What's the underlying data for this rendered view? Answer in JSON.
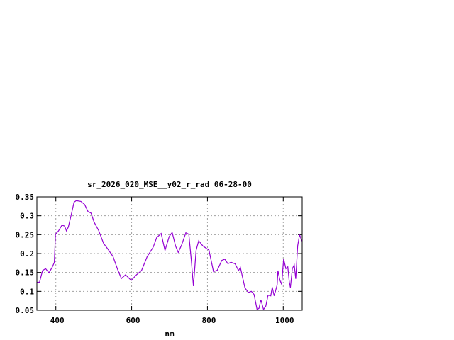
{
  "chart_data": {
    "type": "line",
    "title": "sr_2026_020_MSE__y02_r_rad 06-28-00",
    "xlabel": "nm",
    "ylabel": "",
    "xlim": [
      350,
      1050
    ],
    "ylim": [
      0.05,
      0.35
    ],
    "grid": true,
    "x_ticks": [
      400,
      600,
      800,
      1000
    ],
    "y_ticks": [
      0.05,
      0.1,
      0.15,
      0.2,
      0.25,
      0.3,
      0.35
    ],
    "y_tick_labels": [
      "0.05",
      "0.1",
      "0.15",
      "0.2",
      "0.25",
      "0.3",
      "0.35"
    ],
    "x_tick_labels": [
      "400",
      "600",
      "800",
      "1000"
    ],
    "series": [
      {
        "color": "#9400d3",
        "points": [
          [
            350,
            0.124
          ],
          [
            357,
            0.124
          ],
          [
            365,
            0.155
          ],
          [
            373,
            0.16
          ],
          [
            382,
            0.149
          ],
          [
            391,
            0.165
          ],
          [
            396,
            0.177
          ],
          [
            399,
            0.251
          ],
          [
            407,
            0.26
          ],
          [
            416,
            0.275
          ],
          [
            423,
            0.273
          ],
          [
            428,
            0.26
          ],
          [
            433,
            0.27
          ],
          [
            441,
            0.304
          ],
          [
            448,
            0.336
          ],
          [
            454,
            0.34
          ],
          [
            466,
            0.338
          ],
          [
            476,
            0.33
          ],
          [
            485,
            0.311
          ],
          [
            493,
            0.307
          ],
          [
            501,
            0.283
          ],
          [
            513,
            0.261
          ],
          [
            526,
            0.227
          ],
          [
            538,
            0.211
          ],
          [
            551,
            0.192
          ],
          [
            563,
            0.158
          ],
          [
            573,
            0.134
          ],
          [
            584,
            0.144
          ],
          [
            599,
            0.129
          ],
          [
            613,
            0.144
          ],
          [
            626,
            0.155
          ],
          [
            641,
            0.192
          ],
          [
            657,
            0.217
          ],
          [
            666,
            0.242
          ],
          [
            678,
            0.253
          ],
          [
            688,
            0.208
          ],
          [
            699,
            0.245
          ],
          [
            707,
            0.256
          ],
          [
            716,
            0.22
          ],
          [
            723,
            0.203
          ],
          [
            732,
            0.223
          ],
          [
            743,
            0.255
          ],
          [
            751,
            0.251
          ],
          [
            757,
            0.186
          ],
          [
            763,
            0.114
          ],
          [
            770,
            0.208
          ],
          [
            777,
            0.234
          ],
          [
            788,
            0.22
          ],
          [
            804,
            0.209
          ],
          [
            816,
            0.152
          ],
          [
            826,
            0.156
          ],
          [
            838,
            0.182
          ],
          [
            846,
            0.185
          ],
          [
            854,
            0.173
          ],
          [
            862,
            0.177
          ],
          [
            873,
            0.173
          ],
          [
            882,
            0.155
          ],
          [
            887,
            0.163
          ],
          [
            891,
            0.145
          ],
          [
            899,
            0.109
          ],
          [
            908,
            0.097
          ],
          [
            916,
            0.1
          ],
          [
            923,
            0.092
          ],
          [
            931,
            0.052
          ],
          [
            936,
            0.055
          ],
          [
            941,
            0.078
          ],
          [
            948,
            0.052
          ],
          [
            954,
            0.061
          ],
          [
            960,
            0.09
          ],
          [
            967,
            0.088
          ],
          [
            971,
            0.111
          ],
          [
            976,
            0.088
          ],
          [
            984,
            0.117
          ],
          [
            986,
            0.155
          ],
          [
            991,
            0.13
          ],
          [
            996,
            0.118
          ],
          [
            1001,
            0.186
          ],
          [
            1007,
            0.16
          ],
          [
            1012,
            0.165
          ],
          [
            1016,
            0.125
          ],
          [
            1019,
            0.11
          ],
          [
            1024,
            0.16
          ],
          [
            1029,
            0.17
          ],
          [
            1033,
            0.133
          ],
          [
            1038,
            0.22
          ],
          [
            1043,
            0.25
          ],
          [
            1049,
            0.233
          ]
        ]
      }
    ]
  }
}
